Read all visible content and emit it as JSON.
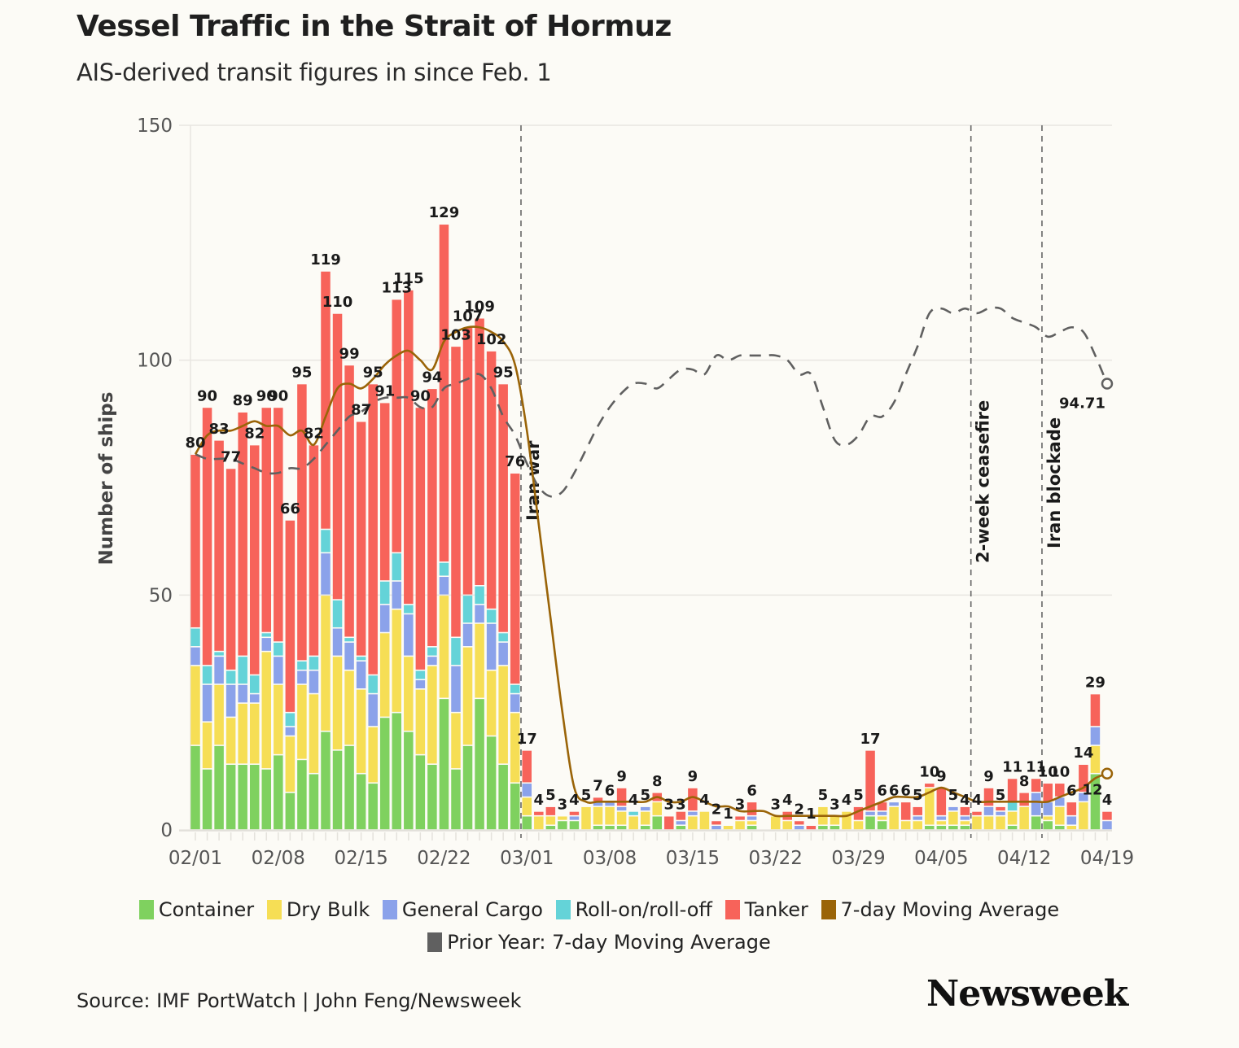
{
  "header": {
    "title": "Vessel Traffic in the Strait of Hormuz",
    "subtitle": "AIS-derived transit figures in since Feb. 1"
  },
  "footer": {
    "source": "Source: IMF PortWatch | John Feng/Newsweek",
    "logo": "Newsweek"
  },
  "chart_data": {
    "type": "bar",
    "stacked": true,
    "title": "Vessel Traffic in the Strait of Hormuz",
    "subtitle": "AIS-derived transit figures in since Feb. 1",
    "xlabel": "",
    "ylabel": "Number of ships",
    "ylim": [
      0,
      150
    ],
    "yticks": [
      0,
      50,
      100,
      150
    ],
    "grid": true,
    "legend_position": "bottom",
    "start_date": "02/01",
    "xtick_labels": [
      "02/01",
      "02/08",
      "02/15",
      "02/22",
      "03/01",
      "03/08",
      "03/15",
      "03/22",
      "03/29",
      "04/05",
      "04/12",
      "04/19"
    ],
    "xtick_day_index": [
      0,
      7,
      14,
      21,
      28,
      35,
      42,
      49,
      56,
      63,
      70,
      77
    ],
    "colors": {
      "Container": "#7fd15f",
      "Dry Bulk": "#f6de55",
      "General Cargo": "#8ba2ea",
      "Roll-on/roll-off": "#64d3d8",
      "Tanker": "#f7635a",
      "7-day Moving Average": "#9a6408",
      "Prior Year: 7-day Moving Average": "#606060"
    },
    "legend": [
      "Container",
      "Dry Bulk",
      "General Cargo",
      "Roll-on/roll-off",
      "Tanker",
      "7-day Moving Average",
      "Prior Year: 7-day Moving Average"
    ],
    "totals": [
      80,
      90,
      83,
      77,
      89,
      82,
      90,
      90,
      66,
      95,
      82,
      119,
      110,
      99,
      87,
      95,
      91,
      113,
      115,
      90,
      94,
      129,
      103,
      107,
      109,
      102,
      95,
      76,
      17,
      4,
      5,
      3,
      4,
      5,
      7,
      6,
      9,
      4,
      5,
      8,
      3,
      3,
      9,
      4,
      2,
      1,
      3,
      6,
      0,
      3,
      4,
      2,
      1,
      5,
      3,
      4,
      5,
      17,
      6,
      6,
      6,
      5,
      10,
      9,
      5,
      4,
      4,
      9,
      5,
      11,
      8,
      11,
      10,
      10,
      6,
      14,
      29,
      4
    ],
    "series": [
      {
        "name": "Container",
        "values": [
          18,
          13,
          18,
          14,
          14,
          14,
          13,
          16,
          8,
          15,
          12,
          21,
          17,
          18,
          12,
          10,
          24,
          25,
          21,
          16,
          14,
          28,
          13,
          18,
          28,
          20,
          14,
          10,
          3,
          0,
          1,
          2,
          2,
          0,
          1,
          1,
          1,
          0,
          1,
          3,
          0,
          1,
          0,
          0,
          0,
          0,
          0,
          1,
          0,
          0,
          0,
          0,
          0,
          1,
          1,
          0,
          0,
          3,
          2,
          0,
          0,
          0,
          1,
          1,
          1,
          1,
          0,
          0,
          0,
          1,
          0,
          3,
          2,
          1,
          0,
          0,
          12,
          0
        ]
      },
      {
        "name": "Dry Bulk",
        "values": [
          17,
          10,
          13,
          10,
          13,
          13,
          25,
          15,
          12,
          16,
          17,
          29,
          20,
          16,
          18,
          12,
          18,
          22,
          16,
          14,
          21,
          22,
          12,
          21,
          16,
          14,
          21,
          15,
          4,
          3,
          2,
          1,
          0,
          5,
          4,
          4,
          3,
          3,
          3,
          3,
          0,
          0,
          3,
          4,
          0,
          1,
          2,
          1,
          0,
          3,
          2,
          0,
          0,
          4,
          2,
          4,
          2,
          0,
          1,
          5,
          2,
          2,
          8,
          1,
          3,
          1,
          3,
          3,
          3,
          3,
          5,
          0,
          1,
          4,
          1,
          6,
          6,
          0
        ]
      },
      {
        "name": "General Cargo",
        "values": [
          4,
          8,
          6,
          7,
          4,
          2,
          3,
          6,
          2,
          3,
          5,
          9,
          6,
          6,
          6,
          7,
          6,
          6,
          9,
          2,
          2,
          4,
          10,
          5,
          4,
          10,
          5,
          4,
          3,
          0,
          0,
          0,
          1,
          0,
          1,
          1,
          1,
          0,
          1,
          0,
          0,
          1,
          1,
          0,
          1,
          0,
          0,
          1,
          0,
          0,
          0,
          1,
          0,
          0,
          0,
          0,
          0,
          1,
          1,
          1,
          0,
          1,
          0,
          1,
          1,
          1,
          0,
          2,
          1,
          0,
          0,
          5,
          3,
          2,
          2,
          2,
          4,
          2
        ]
      },
      {
        "name": "Roll-on/roll-off",
        "values": [
          4,
          4,
          1,
          3,
          6,
          4,
          1,
          3,
          3,
          2,
          3,
          5,
          6,
          1,
          1,
          4,
          5,
          6,
          2,
          2,
          2,
          3,
          6,
          6,
          4,
          3,
          2,
          2,
          0,
          0,
          0,
          0,
          0,
          0,
          0,
          0,
          0,
          1,
          0,
          0,
          0,
          0,
          0,
          0,
          0,
          0,
          0,
          0,
          0,
          0,
          0,
          0,
          0,
          0,
          0,
          0,
          0,
          0,
          0,
          0,
          0,
          0,
          0,
          0,
          0,
          0,
          0,
          0,
          0,
          2,
          0,
          0,
          0,
          0,
          0,
          0,
          0,
          0
        ]
      },
      {
        "name": "Tanker",
        "values": [
          37,
          55,
          45,
          43,
          52,
          49,
          48,
          50,
          41,
          59,
          45,
          55,
          61,
          58,
          50,
          62,
          38,
          54,
          67,
          56,
          55,
          72,
          62,
          57,
          57,
          55,
          53,
          45,
          7,
          1,
          2,
          0,
          1,
          0,
          1,
          0,
          4,
          0,
          0,
          2,
          3,
          2,
          5,
          0,
          1,
          0,
          1,
          3,
          0,
          0,
          2,
          1,
          1,
          0,
          0,
          0,
          3,
          13,
          2,
          0,
          4,
          2,
          1,
          6,
          0,
          2,
          1,
          4,
          1,
          5,
          3,
          3,
          4,
          3,
          3,
          6,
          7,
          2
        ]
      }
    ],
    "moving_average": {
      "name": "7-day Moving Average",
      "values": [
        80,
        84,
        85,
        85,
        86,
        87,
        86,
        86,
        84,
        85,
        82,
        88,
        94,
        95,
        94,
        96,
        99,
        101,
        102,
        100,
        98,
        104,
        106,
        107,
        107,
        106,
        104,
        99,
        85,
        65,
        45,
        25,
        9,
        6,
        6,
        6,
        6,
        6,
        6,
        7,
        6,
        6,
        7,
        6,
        5,
        5,
        4,
        4,
        4,
        3,
        3,
        3,
        3,
        3,
        3,
        3,
        4,
        5,
        6,
        7,
        7,
        7,
        8,
        9,
        8,
        7,
        6,
        6,
        6,
        6,
        6,
        6,
        6,
        7,
        8,
        9,
        11,
        12
      ],
      "end_label": "12"
    },
    "prior_year_average": {
      "name": "Prior Year: 7-day Moving Average",
      "values": [
        80,
        79,
        79,
        79,
        78,
        77,
        76,
        76,
        77,
        77,
        79,
        82,
        85,
        88,
        89,
        91,
        92,
        92,
        92,
        90,
        90,
        94,
        95,
        96,
        97,
        94,
        88,
        84,
        78,
        73,
        71,
        72,
        76,
        81,
        86,
        90,
        93,
        95,
        95,
        94,
        96,
        98,
        98,
        97,
        101,
        100,
        101,
        101,
        101,
        101,
        100,
        97,
        97,
        90,
        83,
        82,
        84,
        88,
        88,
        91,
        97,
        103,
        110,
        111,
        110,
        111,
        110,
        111,
        111,
        109,
        108,
        107,
        105,
        106,
        107,
        106,
        101,
        95
      ],
      "end_label": "94.71"
    },
    "annotations": [
      {
        "label": "Iran war",
        "day_index": 27.5
      },
      {
        "label": "2-week ceasefire",
        "day_index": 65.5
      },
      {
        "label": "Iran blockade",
        "day_index": 71.5
      }
    ]
  }
}
